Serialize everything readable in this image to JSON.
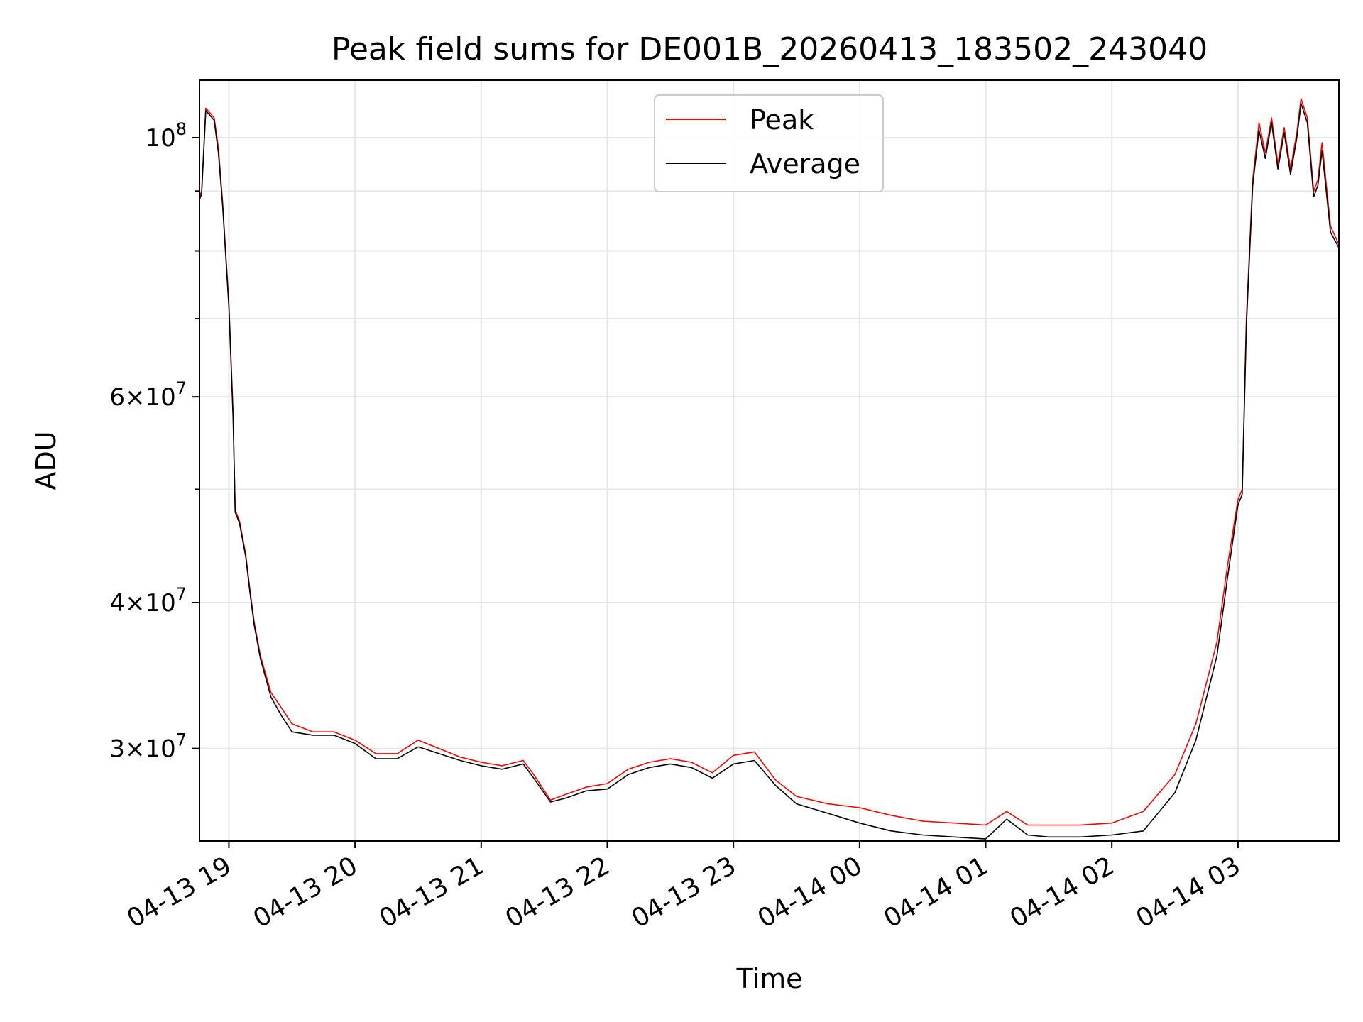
{
  "chart_data": {
    "type": "line",
    "title": "Peak field sums for DE001B_20260413_183502_243040",
    "xlabel": "Time",
    "ylabel": "ADU",
    "yscale": "log",
    "xlim": [
      "2026-04-13 18:46",
      "2026-04-14 03:48"
    ],
    "ylim": [
      25000000,
      112000000
    ],
    "grid": true,
    "legend_position": "top-center",
    "x_tick_labels": [
      "04-13 19",
      "04-13 20",
      "04-13 21",
      "04-13 22",
      "04-13 23",
      "04-14 00",
      "04-14 01",
      "04-14 02",
      "04-14 03"
    ],
    "x_tick_times": [
      "2026-04-13 19:00",
      "2026-04-13 20:00",
      "2026-04-13 21:00",
      "2026-04-13 22:00",
      "2026-04-13 23:00",
      "2026-04-14 00:00",
      "2026-04-14 01:00",
      "2026-04-14 02:00",
      "2026-04-14 03:00"
    ],
    "y_major_ticks": [
      {
        "value": 30000000,
        "mantissa": "3",
        "exp": "7"
      },
      {
        "value": 40000000,
        "mantissa": "4",
        "exp": "7"
      },
      {
        "value": 60000000,
        "mantissa": "6",
        "exp": "7"
      },
      {
        "value": 100000000,
        "mantissa": "",
        "exp": "8"
      }
    ],
    "y_minor_ticks": [
      50000000,
      70000000,
      80000000,
      90000000
    ],
    "series": [
      {
        "name": "Peak",
        "color": "#ff0000",
        "x": [
          "2026-04-13 18:46",
          "2026-04-13 18:47",
          "2026-04-13 18:49",
          "2026-04-13 18:51",
          "2026-04-13 18:53",
          "2026-04-13 18:55",
          "2026-04-13 18:57",
          "2026-04-13 19:00",
          "2026-04-13 19:02",
          "2026-04-13 19:03",
          "2026-04-13 19:05",
          "2026-04-13 19:08",
          "2026-04-13 19:10",
          "2026-04-13 19:12",
          "2026-04-13 19:15",
          "2026-04-13 19:20",
          "2026-04-13 19:25",
          "2026-04-13 19:30",
          "2026-04-13 19:40",
          "2026-04-13 19:50",
          "2026-04-13 20:00",
          "2026-04-13 20:10",
          "2026-04-13 20:20",
          "2026-04-13 20:30",
          "2026-04-13 20:40",
          "2026-04-13 20:50",
          "2026-04-13 21:00",
          "2026-04-13 21:10",
          "2026-04-13 21:20",
          "2026-04-13 21:25",
          "2026-04-13 21:33",
          "2026-04-13 21:40",
          "2026-04-13 21:50",
          "2026-04-13 22:00",
          "2026-04-13 22:10",
          "2026-04-13 22:20",
          "2026-04-13 22:30",
          "2026-04-13 22:40",
          "2026-04-13 22:50",
          "2026-04-13 23:00",
          "2026-04-13 23:10",
          "2026-04-13 23:20",
          "2026-04-13 23:30",
          "2026-04-13 23:45",
          "2026-04-14 00:00",
          "2026-04-14 00:15",
          "2026-04-14 00:30",
          "2026-04-14 00:45",
          "2026-04-14 01:00",
          "2026-04-14 01:10",
          "2026-04-14 01:20",
          "2026-04-14 01:30",
          "2026-04-14 01:45",
          "2026-04-14 02:00",
          "2026-04-14 02:15",
          "2026-04-14 02:30",
          "2026-04-14 02:40",
          "2026-04-14 02:50",
          "2026-04-14 02:55",
          "2026-04-14 03:00",
          "2026-04-14 03:02",
          "2026-04-14 03:04",
          "2026-04-14 03:07",
          "2026-04-14 03:10",
          "2026-04-14 03:13",
          "2026-04-14 03:16",
          "2026-04-14 03:19",
          "2026-04-14 03:22",
          "2026-04-14 03:25",
          "2026-04-14 03:28",
          "2026-04-14 03:30",
          "2026-04-14 03:33",
          "2026-04-14 03:36",
          "2026-04-14 03:38",
          "2026-04-14 03:40",
          "2026-04-14 03:44",
          "2026-04-14 03:48"
        ],
        "values": [
          89000000,
          90000000,
          106000000,
          105000000,
          104000000,
          98000000,
          88000000,
          72000000,
          58000000,
          48000000,
          47000000,
          44000000,
          41000000,
          38500000,
          36000000,
          33500000,
          32500000,
          31500000,
          31000000,
          31000000,
          30500000,
          29700000,
          29700000,
          30500000,
          30000000,
          29500000,
          29200000,
          29000000,
          29300000,
          28500000,
          27100000,
          27400000,
          27800000,
          28000000,
          28800000,
          29200000,
          29400000,
          29200000,
          28600000,
          29600000,
          29800000,
          28200000,
          27300000,
          26900000,
          26700000,
          26300000,
          26000000,
          25900000,
          25800000,
          26500000,
          25800000,
          25800000,
          25800000,
          25900000,
          26500000,
          28500000,
          31500000,
          37000000,
          43000000,
          49000000,
          50000000,
          70000000,
          92000000,
          103000000,
          97000000,
          104000000,
          95000000,
          102000000,
          94000000,
          101000000,
          108000000,
          104000000,
          90000000,
          92000000,
          99000000,
          84000000,
          81000000
        ]
      },
      {
        "name": "Average",
        "color": "#000000",
        "x": [
          "2026-04-13 18:46",
          "2026-04-13 18:47",
          "2026-04-13 18:49",
          "2026-04-13 18:51",
          "2026-04-13 18:53",
          "2026-04-13 18:55",
          "2026-04-13 18:57",
          "2026-04-13 19:00",
          "2026-04-13 19:02",
          "2026-04-13 19:03",
          "2026-04-13 19:05",
          "2026-04-13 19:08",
          "2026-04-13 19:10",
          "2026-04-13 19:12",
          "2026-04-13 19:15",
          "2026-04-13 19:20",
          "2026-04-13 19:25",
          "2026-04-13 19:30",
          "2026-04-13 19:40",
          "2026-04-13 19:50",
          "2026-04-13 20:00",
          "2026-04-13 20:10",
          "2026-04-13 20:20",
          "2026-04-13 20:30",
          "2026-04-13 20:40",
          "2026-04-13 20:50",
          "2026-04-13 21:00",
          "2026-04-13 21:10",
          "2026-04-13 21:20",
          "2026-04-13 21:25",
          "2026-04-13 21:33",
          "2026-04-13 21:40",
          "2026-04-13 21:50",
          "2026-04-13 22:00",
          "2026-04-13 22:10",
          "2026-04-13 22:20",
          "2026-04-13 22:30",
          "2026-04-13 22:40",
          "2026-04-13 22:50",
          "2026-04-13 23:00",
          "2026-04-13 23:10",
          "2026-04-13 23:20",
          "2026-04-13 23:30",
          "2026-04-13 23:45",
          "2026-04-14 00:00",
          "2026-04-14 00:15",
          "2026-04-14 00:30",
          "2026-04-14 00:45",
          "2026-04-14 01:00",
          "2026-04-14 01:10",
          "2026-04-14 01:20",
          "2026-04-14 01:30",
          "2026-04-14 01:45",
          "2026-04-14 02:00",
          "2026-04-14 02:15",
          "2026-04-14 02:30",
          "2026-04-14 02:40",
          "2026-04-14 02:50",
          "2026-04-14 02:55",
          "2026-04-14 03:00",
          "2026-04-14 03:02",
          "2026-04-14 03:04",
          "2026-04-14 03:07",
          "2026-04-14 03:10",
          "2026-04-14 03:13",
          "2026-04-14 03:16",
          "2026-04-14 03:19",
          "2026-04-14 03:22",
          "2026-04-14 03:25",
          "2026-04-14 03:28",
          "2026-04-14 03:30",
          "2026-04-14 03:33",
          "2026-04-14 03:36",
          "2026-04-14 03:38",
          "2026-04-14 03:40",
          "2026-04-14 03:44",
          "2026-04-14 03:48"
        ],
        "values": [
          88500000,
          89500000,
          105500000,
          104500000,
          103500000,
          97000000,
          87500000,
          71500000,
          57500000,
          47800000,
          46800000,
          43800000,
          40800000,
          38300000,
          35800000,
          33200000,
          32000000,
          31000000,
          30800000,
          30800000,
          30300000,
          29400000,
          29400000,
          30100000,
          29700000,
          29300000,
          29000000,
          28800000,
          29100000,
          28300000,
          27000000,
          27200000,
          27600000,
          27700000,
          28500000,
          28900000,
          29100000,
          28900000,
          28300000,
          29100000,
          29300000,
          27900000,
          26900000,
          26400000,
          25900000,
          25500000,
          25300000,
          25200000,
          25100000,
          26100000,
          25300000,
          25200000,
          25200000,
          25300000,
          25500000,
          27500000,
          30500000,
          36000000,
          42000000,
          48500000,
          49500000,
          69000000,
          91000000,
          101500000,
          96000000,
          103000000,
          94000000,
          101000000,
          93000000,
          100000000,
          107000000,
          103000000,
          89000000,
          91000000,
          97500000,
          83000000,
          80500000
        ]
      }
    ]
  }
}
